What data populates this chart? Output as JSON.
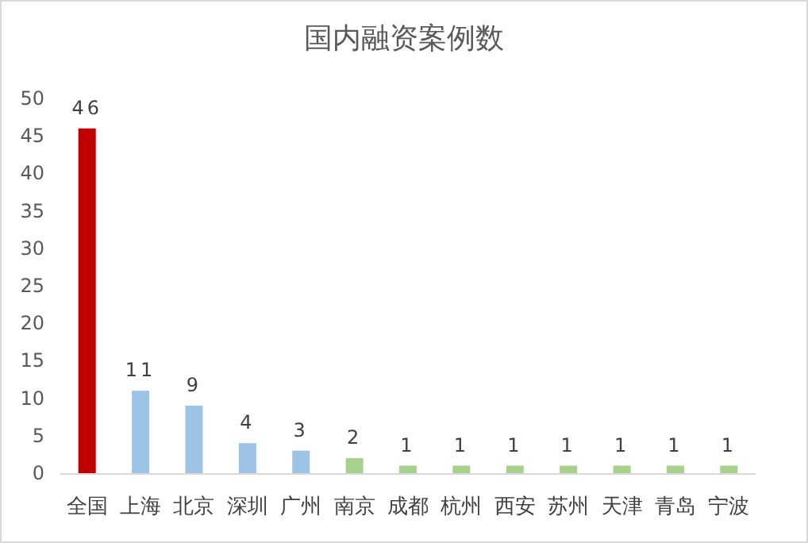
{
  "chart_data": {
    "type": "bar",
    "title": "国内融资案例数",
    "categories": [
      "全国",
      "上海",
      "北京",
      "深圳",
      "广州",
      "南京",
      "成都",
      "杭州",
      "西安",
      "苏州",
      "天津",
      "青岛",
      "宁波"
    ],
    "values": [
      46,
      11,
      9,
      4,
      3,
      2,
      1,
      1,
      1,
      1,
      1,
      1,
      1
    ],
    "colors": [
      "#c00000",
      "#9dc3e6",
      "#9dc3e6",
      "#9dc3e6",
      "#9dc3e6",
      "#a9d18e",
      "#a9d18e",
      "#a9d18e",
      "#a9d18e",
      "#a9d18e",
      "#a9d18e",
      "#a9d18e",
      "#a9d18e"
    ],
    "ylim": [
      0,
      50
    ],
    "yticks": [
      0,
      5,
      10,
      15,
      20,
      25,
      30,
      35,
      40,
      45,
      50
    ],
    "data_labels": true,
    "grid": false
  }
}
